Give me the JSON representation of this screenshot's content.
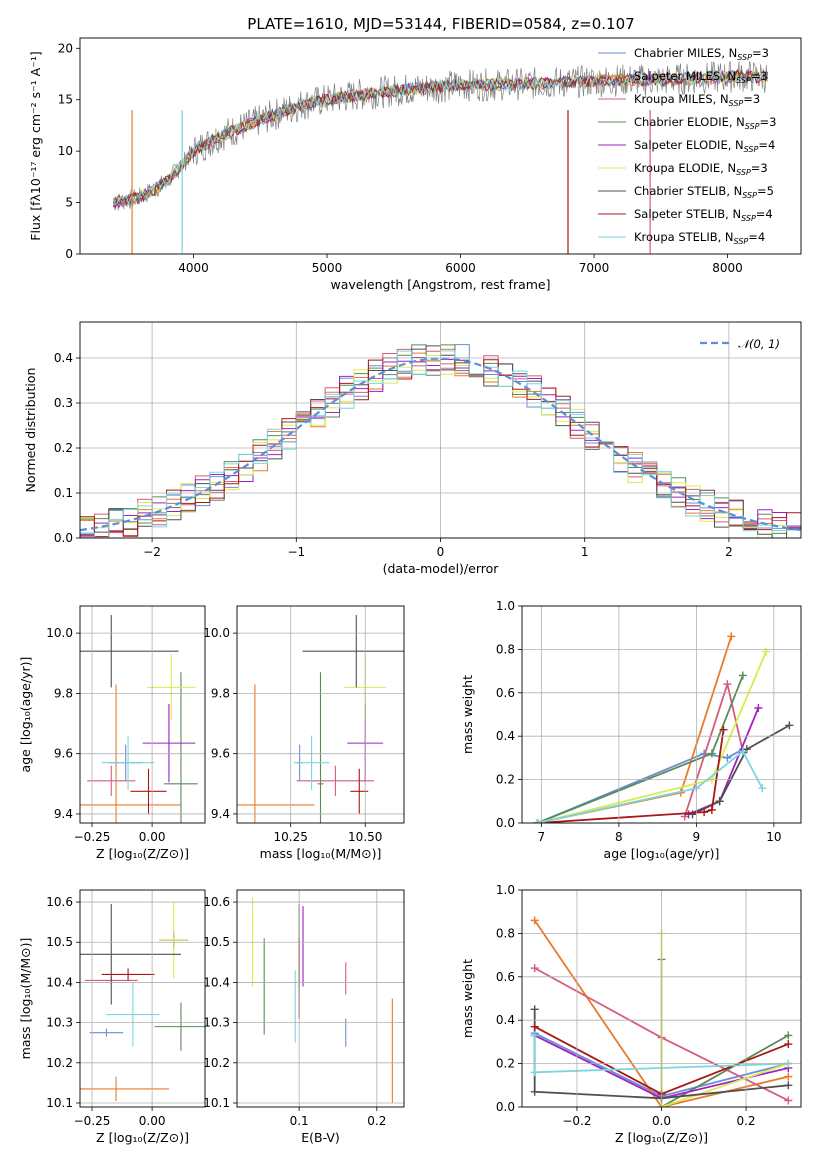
{
  "title": "PLATE=1610, MJD=53144, FIBERID=0584, z=0.107",
  "series_colors": [
    "#6a8fd6",
    "#e87a2a",
    "#d65c7a",
    "#5a8a5a",
    "#a020c0",
    "#d8ec50",
    "#505050",
    "#a81818",
    "#7ad6e0"
  ],
  "chart_data": [
    {
      "id": "spectrum",
      "type": "line",
      "xlabel": "wavelength [Angstrom, rest frame]",
      "ylabel": "Flux [fλ10⁻¹⁷ erg cm⁻² s⁻¹ A⁻¹]",
      "xlim": [
        3150,
        8550
      ],
      "ylim": [
        0,
        21
      ],
      "xticks": [
        4000,
        5000,
        6000,
        7000,
        8000
      ],
      "yticks": [
        0,
        5,
        10,
        15,
        20
      ],
      "grid": false,
      "legend_position": "top-right",
      "data_envelope": {
        "x": [
          3400,
          3600,
          3800,
          4000,
          4200,
          4500,
          4800,
          5000,
          5300,
          5600,
          6000,
          6400,
          6800,
          7200,
          7500,
          7800,
          8100,
          8300
        ],
        "y": [
          5.0,
          5.5,
          7.0,
          10.0,
          11.5,
          13.0,
          14.5,
          15.0,
          15.6,
          16.0,
          16.4,
          16.5,
          16.7,
          16.9,
          16.9,
          17.1,
          17.3,
          17.2
        ]
      },
      "series": [
        {
          "name": "Chabrier MILES, N_SSP=3"
        },
        {
          "name": "Salpeter MILES, N_SSP=3"
        },
        {
          "name": "Kroupa MILES, N_SSP=3"
        },
        {
          "name": "Chabrier ELODIE, N_SSP=3"
        },
        {
          "name": "Salpeter ELODIE, N_SSP=4"
        },
        {
          "name": "Kroupa ELODIE, N_SSP=3"
        },
        {
          "name": "Chabrier STELIB, N_SSP=5"
        },
        {
          "name": "Salpeter STELIB, N_SSP=4"
        },
        {
          "name": "Kroupa STELIB, N_SSP=4"
        }
      ]
    },
    {
      "id": "residuals",
      "type": "line",
      "xlabel": "(data-model)/error",
      "ylabel": "Normed distribution",
      "xlim": [
        -2.5,
        2.5
      ],
      "ylim": [
        0,
        0.48
      ],
      "xticks": [
        -2,
        -1,
        0,
        1,
        2
      ],
      "yticks": [
        0.0,
        0.1,
        0.2,
        0.3,
        0.4
      ],
      "grid": true,
      "legend_position": "top-right",
      "bin_width": 0.1,
      "reference": {
        "name": "𝒩(0, 1)",
        "mean": 0,
        "sigma": 1
      }
    },
    {
      "id": "age_vs_Z",
      "type": "scatter",
      "xlabel": "Z [log₁₀(Z/Z⊙)]",
      "ylabel": "age  [log₁₀(age/yr)]",
      "xlim": [
        -0.3,
        0.22
      ],
      "ylim": [
        9.37,
        10.09
      ],
      "xticks": [
        -0.25,
        0.0
      ],
      "xticklabels": [
        "−0.25",
        "0.00"
      ],
      "yticks": [
        9.4,
        9.6,
        9.8,
        10.0
      ],
      "grid": true,
      "points": [
        {
          "x": -0.11,
          "xerr": 0.07,
          "y": 9.57,
          "yerr": 0.06
        },
        {
          "x": -0.15,
          "xerr": 0.27,
          "y": 9.43,
          "yerr": 0.4
        },
        {
          "x": -0.17,
          "xerr": 0.1,
          "y": 9.51,
          "yerr": 0.05
        },
        {
          "x": 0.12,
          "xerr": 0.07,
          "y": 9.5,
          "yerr": 0.37
        },
        {
          "x": 0.07,
          "xerr": 0.11,
          "y": 9.635,
          "yerr": 0.13
        },
        {
          "x": 0.08,
          "xerr": 0.1,
          "y": 9.82,
          "yerr": 0.11
        },
        {
          "x": -0.17,
          "xerr": 0.28,
          "y": 9.94,
          "yerr": 0.12
        },
        {
          "x": -0.015,
          "xerr": 0.075,
          "y": 9.475,
          "yerr": 0.075
        },
        {
          "x": -0.1,
          "xerr": 0.11,
          "y": 9.57,
          "yerr": 0.09
        }
      ]
    },
    {
      "id": "age_vs_mass",
      "type": "scatter",
      "xlabel": "mass [log₁₀(M/M⊙)]",
      "xlim": [
        10.07,
        10.63
      ],
      "ylim": [
        9.37,
        10.09
      ],
      "xticks": [
        10.25,
        10.5
      ],
      "xticklabels": [
        "10.25",
        "10.50"
      ],
      "yticks": [
        9.4,
        9.6,
        9.8,
        10.0
      ],
      "grid": true,
      "points": [
        {
          "x": 10.28,
          "xerr": 0.01,
          "y": 9.57,
          "yerr": 0.06
        },
        {
          "x": 10.13,
          "xerr": 0.2,
          "y": 9.43,
          "yerr": 0.4
        },
        {
          "x": 10.4,
          "xerr": 0.13,
          "y": 9.51,
          "yerr": 0.05
        },
        {
          "x": 10.35,
          "xerr": 0.01,
          "y": 9.5,
          "yerr": 0.37
        },
        {
          "x": 10.5,
          "xerr": 0.06,
          "y": 9.635,
          "yerr": 0.13
        },
        {
          "x": 10.5,
          "xerr": 0.07,
          "y": 9.82,
          "yerr": 0.11
        },
        {
          "x": 10.47,
          "xerr": 0.18,
          "y": 9.94,
          "yerr": 0.12
        },
        {
          "x": 10.48,
          "xerr": 0.03,
          "y": 9.475,
          "yerr": 0.075
        },
        {
          "x": 10.32,
          "xerr": 0.06,
          "y": 9.57,
          "yerr": 0.09
        }
      ]
    },
    {
      "id": "weight_vs_age",
      "type": "line",
      "xlabel": "age  [log₁₀(age/yr)]",
      "ylabel": "mass weight",
      "xlim": [
        6.75,
        10.35
      ],
      "ylim": [
        0,
        1.0
      ],
      "xticks": [
        7,
        8,
        9,
        10
      ],
      "yticks": [
        0.0,
        0.2,
        0.4,
        0.6,
        0.8,
        1.0
      ],
      "grid": true,
      "series": [
        {
          "x": [
            6.95,
            9.1,
            9.4,
            9.6
          ],
          "y": [
            0.0,
            0.32,
            0.3,
            0.34
          ]
        },
        {
          "x": [
            6.95,
            8.8,
            9.45
          ],
          "y": [
            0.0,
            0.14,
            0.86
          ]
        },
        {
          "x": [
            8.85,
            9.4,
            9.6
          ],
          "y": [
            0.03,
            0.64,
            0.33
          ]
        },
        {
          "x": [
            6.95,
            9.2,
            9.6
          ],
          "y": [
            0.0,
            0.32,
            0.68
          ]
        },
        {
          "x": [
            8.9,
            9.3,
            9.8
          ],
          "y": [
            0.04,
            0.1,
            0.53
          ]
        },
        {
          "x": [
            6.95,
            9.2,
            9.9
          ],
          "y": [
            0.0,
            0.2,
            0.79
          ]
        },
        {
          "x": [
            8.95,
            9.3,
            9.65,
            10.2
          ],
          "y": [
            0.04,
            0.1,
            0.34,
            0.45
          ]
        },
        {
          "x": [
            6.95,
            9.1,
            9.2,
            9.35
          ],
          "y": [
            0.0,
            0.05,
            0.06,
            0.43
          ]
        },
        {
          "x": [
            6.95,
            9.0,
            9.6,
            9.85
          ],
          "y": [
            0.0,
            0.16,
            0.33,
            0.16
          ]
        }
      ]
    },
    {
      "id": "mass_vs_Z",
      "type": "scatter",
      "xlabel": "Z [log₁₀(Z/Z⊙)]",
      "ylabel": "mass [log₁₀(M/M⊙)]",
      "xlim": [
        -0.3,
        0.22
      ],
      "ylim": [
        10.09,
        10.63
      ],
      "xticks": [
        -0.25,
        0.0
      ],
      "xticklabels": [
        "−0.25",
        "0.00"
      ],
      "yticks": [
        10.1,
        10.2,
        10.3,
        10.4,
        10.5,
        10.6
      ],
      "grid": true,
      "points": [
        {
          "x": -0.19,
          "xerr": 0.07,
          "y": 10.275,
          "yerr": 0.01
        },
        {
          "x": -0.15,
          "xerr": 0.22,
          "y": 10.135,
          "yerr": 0.03
        },
        {
          "x": -0.17,
          "xerr": 0.11,
          "y": 10.405,
          "yerr": 0.01
        },
        {
          "x": 0.12,
          "xerr": 0.11,
          "y": 10.29,
          "yerr": 0.06
        },
        {
          "x": 0.09,
          "xerr": 0.06,
          "y": 10.505,
          "yerr": 0.02
        },
        {
          "x": 0.09,
          "xerr": 0.06,
          "y": 10.505,
          "yerr": 0.095
        },
        {
          "x": -0.17,
          "xerr": 0.29,
          "y": 10.47,
          "yerr": 0.125
        },
        {
          "x": -0.1,
          "xerr": 0.11,
          "y": 10.42,
          "yerr": 0.015
        },
        {
          "x": -0.08,
          "xerr": 0.11,
          "y": 10.32,
          "yerr": 0.08
        }
      ]
    },
    {
      "id": "mass_vs_ebv",
      "type": "scatter",
      "xlabel": "E(B-V)",
      "xlim": [
        0.02,
        0.235
      ],
      "ylim": [
        10.09,
        10.63
      ],
      "xticks": [
        0.1,
        0.2
      ],
      "xticklabels": [
        "0.1",
        "0.2"
      ],
      "yticks": [
        10.1,
        10.2,
        10.3,
        10.4,
        10.5,
        10.6
      ],
      "grid": true,
      "points": [
        {
          "x": 0.16,
          "y": 10.275,
          "yerr": 0.035
        },
        {
          "x": 0.22,
          "y": 10.23,
          "yerr": 0.13
        },
        {
          "x": 0.16,
          "y": 10.41,
          "yerr": 0.04
        },
        {
          "x": 0.055,
          "y": 10.39,
          "yerr": 0.12
        },
        {
          "x": 0.105,
          "y": 10.49,
          "yerr": 0.1
        },
        {
          "x": 0.04,
          "y": 10.5,
          "yerr": 0.11
        },
        {
          "x": 0.1,
          "y": 10.49,
          "yerr": 0.105
        },
        {
          "x": 0.1,
          "y": 10.41,
          "yerr": 0.1
        },
        {
          "x": 0.095,
          "y": 10.34,
          "yerr": 0.09
        }
      ]
    },
    {
      "id": "weight_vs_Z",
      "type": "line",
      "xlabel": "Z [log₁₀(Z/Z⊙)]",
      "ylabel": "mass weight",
      "xlim": [
        -0.33,
        0.33
      ],
      "ylim": [
        0,
        1.0
      ],
      "xticks": [
        -0.2,
        0.0,
        0.2
      ],
      "xticklabels": [
        "−0.2",
        "0.0",
        "0.2"
      ],
      "yticks": [
        0.0,
        0.2,
        0.4,
        0.6,
        0.8,
        1.0
      ],
      "grid": true,
      "series": [
        {
          "x": [
            -0.3,
            0.0,
            0.3
          ],
          "y": [
            0.34,
            0.05,
            0.2
          ]
        },
        {
          "x": [
            -0.3,
            0.0,
            0.3
          ],
          "y": [
            0.86,
            0.0,
            0.14
          ]
        },
        {
          "x": [
            -0.3,
            0.0,
            0.3
          ],
          "y": [
            0.64,
            0.32,
            0.03
          ]
        },
        {
          "x": [
            0.0,
            0.0,
            0.3
          ],
          "y": [
            0.68,
            0.0,
            0.33
          ]
        },
        {
          "x": [
            -0.3,
            0.0,
            0.3
          ],
          "y": [
            0.33,
            0.04,
            0.18
          ]
        },
        {
          "x": [
            0.0,
            0.0,
            0.3
          ],
          "y": [
            0.8,
            0.0,
            0.2
          ]
        },
        {
          "x": [
            -0.3,
            -0.3,
            0.0,
            0.3
          ],
          "y": [
            0.45,
            0.07,
            0.04,
            0.1
          ]
        },
        {
          "x": [
            -0.3,
            0.0,
            0.3
          ],
          "y": [
            0.37,
            0.06,
            0.29
          ]
        },
        {
          "x": [
            -0.3,
            -0.3,
            0.3
          ],
          "y": [
            0.33,
            0.16,
            0.2
          ]
        }
      ]
    }
  ]
}
